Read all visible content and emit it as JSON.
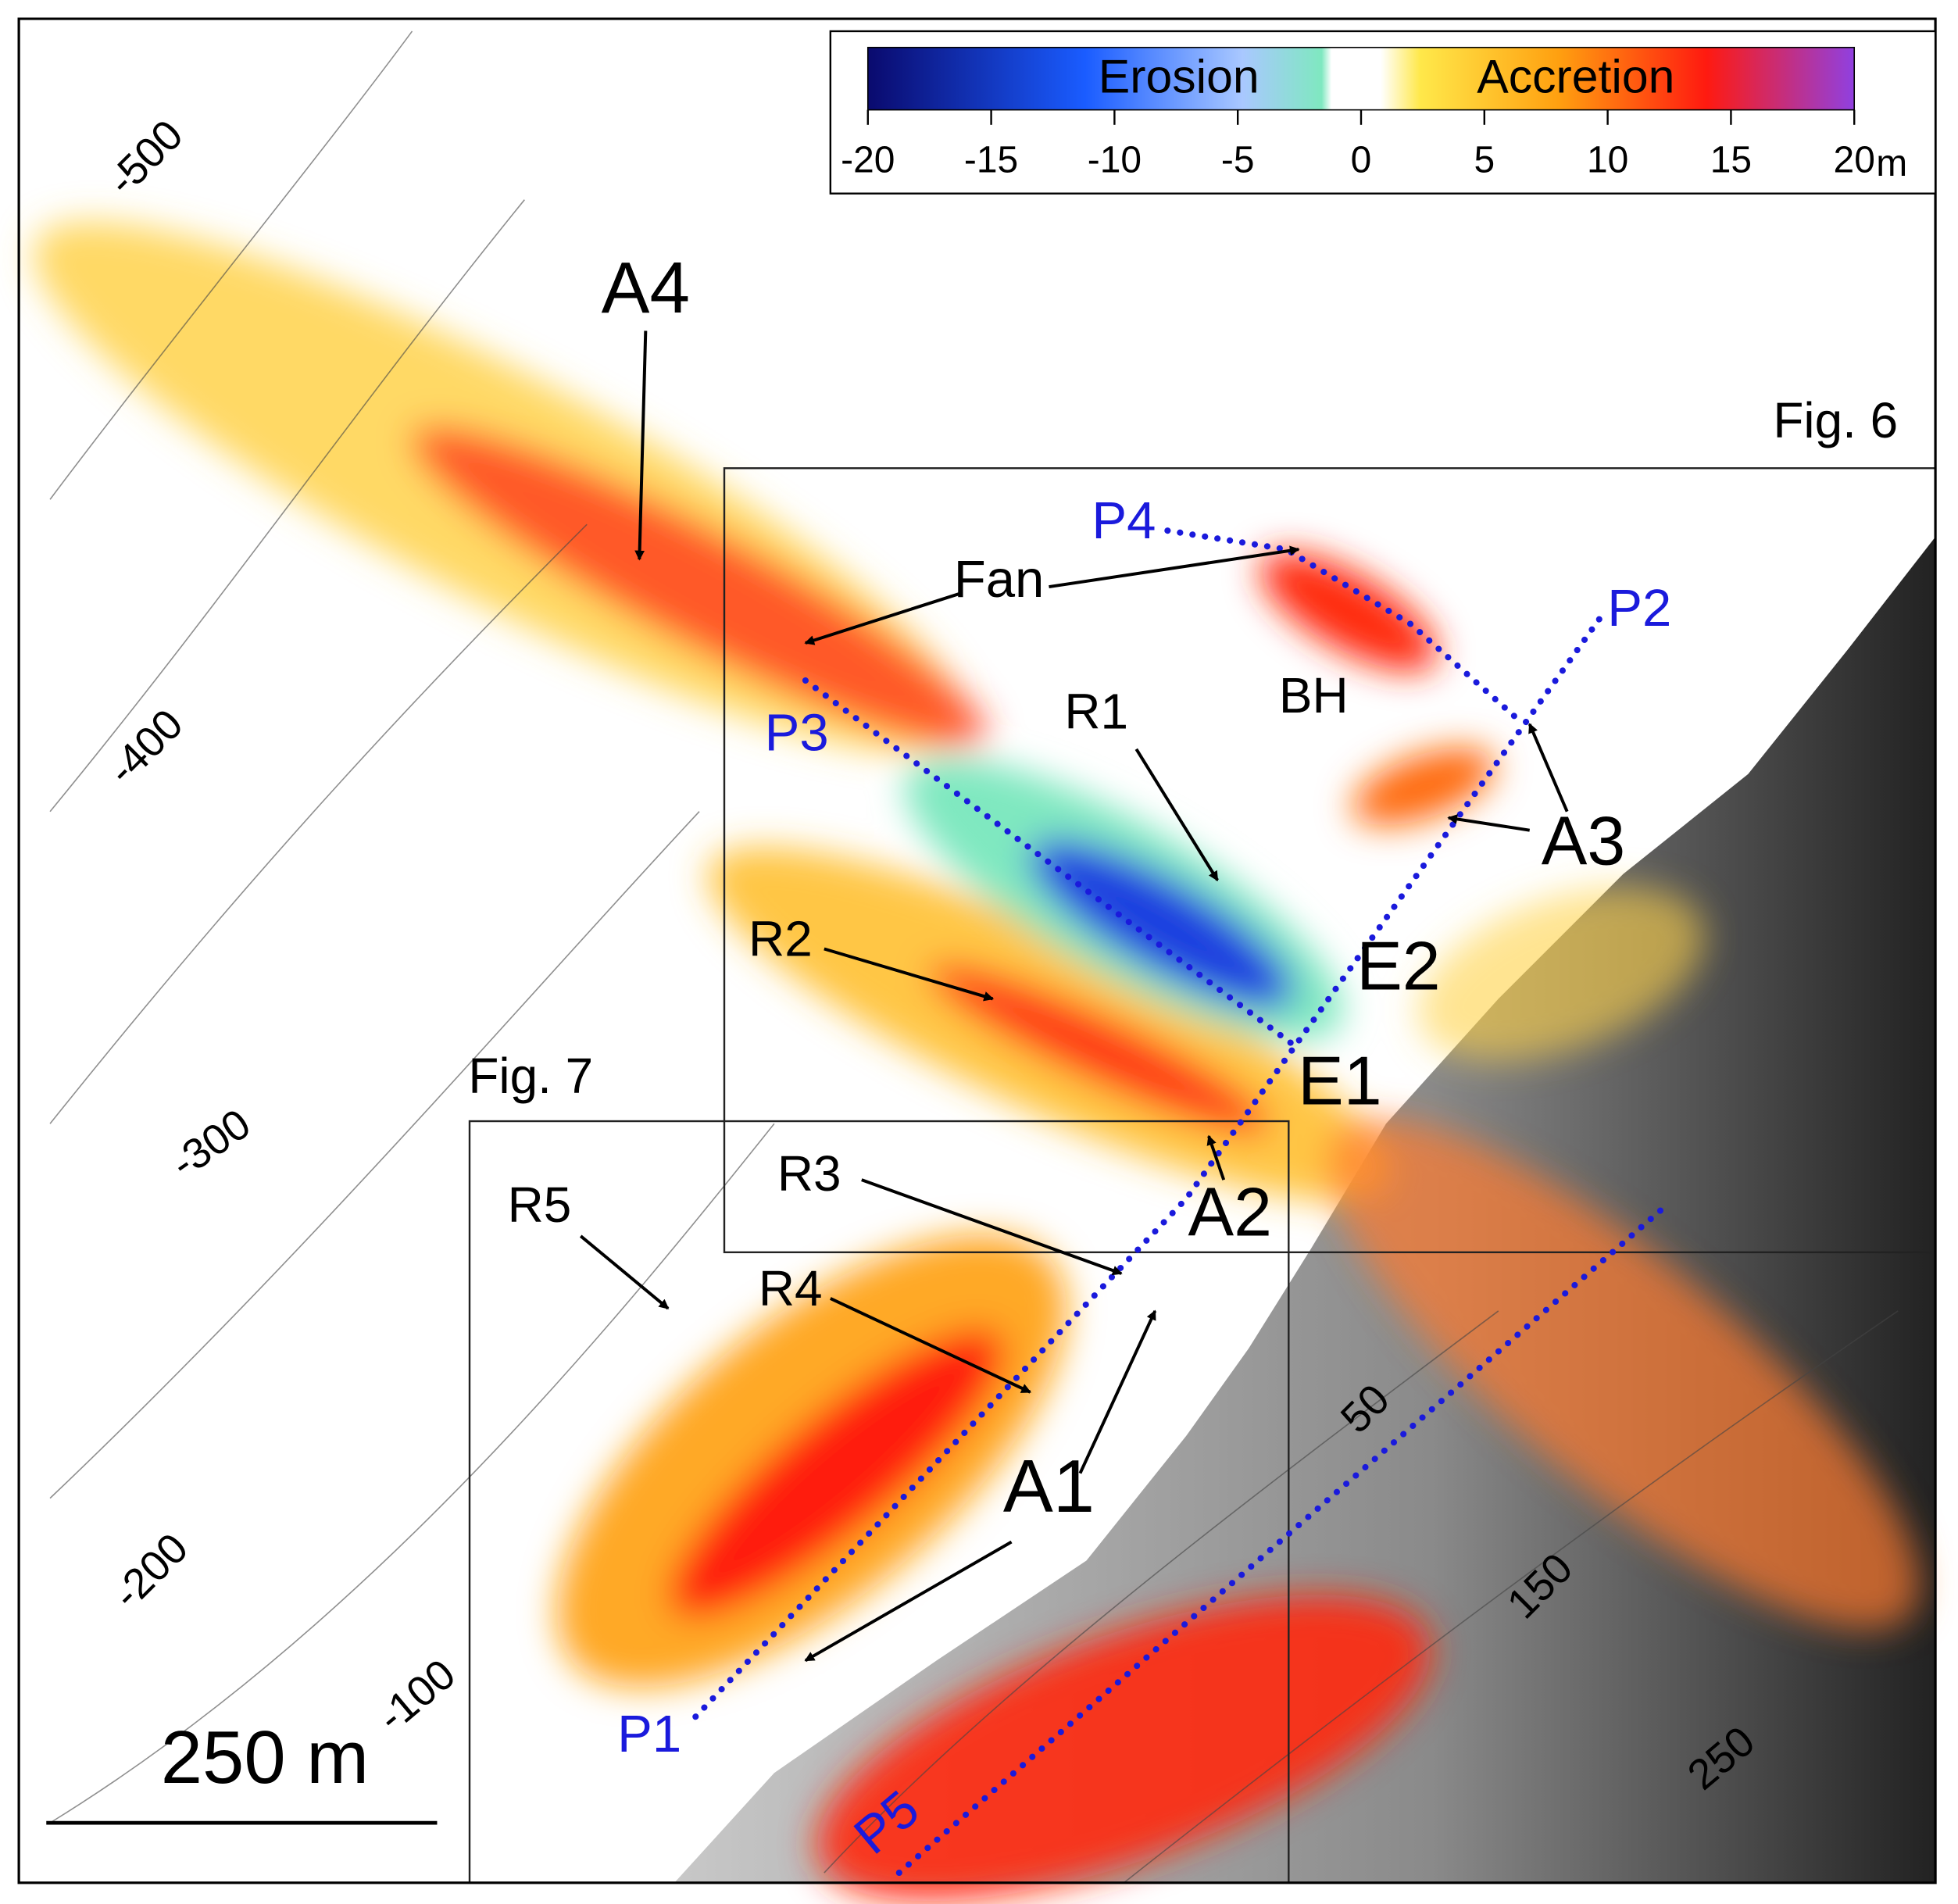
{
  "colorbar": {
    "erosion_label": "Erosion",
    "accretion_label": "Accretion",
    "range": [
      -20,
      20
    ],
    "ticks": [
      -20,
      -15,
      -10,
      -5,
      0,
      5,
      10,
      15,
      20
    ],
    "unit": "m"
  },
  "annotations": [
    "A4",
    "Fan",
    "R1",
    "BH",
    "A3",
    "E2",
    "E1",
    "R2",
    "A2",
    "R3",
    "R4",
    "R5",
    "A1"
  ],
  "profiles": [
    "P1",
    "P2",
    "P3",
    "P4",
    "P5"
  ],
  "figure_boxes": [
    "Fig. 6",
    "Fig. 7"
  ],
  "contours": [
    "-500",
    "-400",
    "-300",
    "-200",
    "-100",
    "50",
    "150",
    "250"
  ],
  "scale_bar": "250 m"
}
